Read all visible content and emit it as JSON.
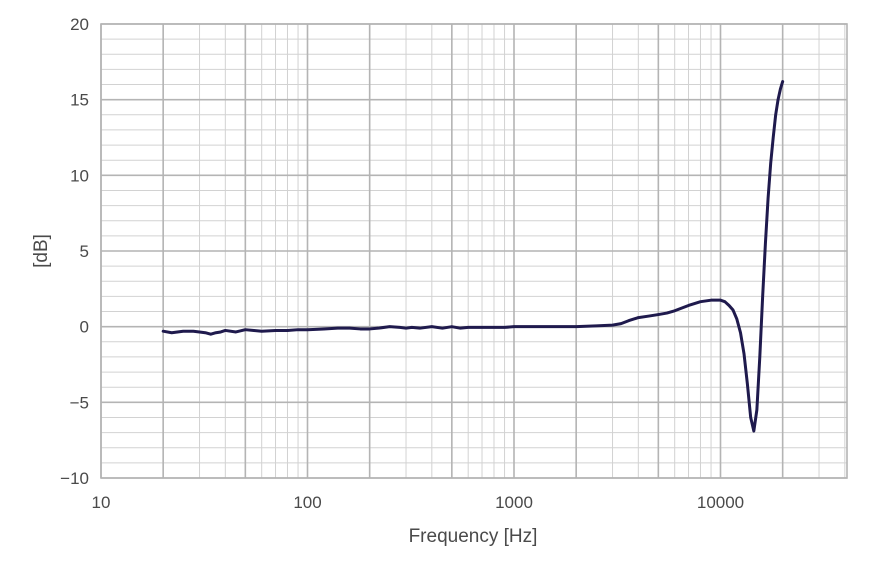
{
  "chart_data": {
    "type": "line",
    "title": "",
    "xlabel": "Frequency [Hz]",
    "ylabel": "[dB]",
    "x_scale": "log",
    "xlim": [
      10,
      40000
    ],
    "ylim": [
      -10,
      20
    ],
    "x_ticks": [
      {
        "value": 10,
        "label": "10"
      },
      {
        "value": 100,
        "label": "100"
      },
      {
        "value": 1000,
        "label": "1000"
      },
      {
        "value": 10000,
        "label": "10000"
      }
    ],
    "y_ticks": [
      {
        "value": 20,
        "label": "20"
      },
      {
        "value": 15,
        "label": "15"
      },
      {
        "value": 10,
        "label": "10"
      },
      {
        "value": 5,
        "label": "5"
      },
      {
        "value": 0,
        "label": "0"
      },
      {
        "value": -5,
        "label": "−5"
      },
      {
        "value": -10,
        "label": "−10"
      }
    ],
    "grid": true,
    "colors": {
      "line": "#1f1a4d",
      "major_grid": "#b4b4b4",
      "minor_grid": "#d2d2d2",
      "text": "#4a4a4a"
    },
    "series": [
      {
        "x": [
          20,
          22,
          25,
          28,
          30,
          32,
          34,
          36,
          38,
          40,
          45,
          50,
          55,
          60,
          70,
          80,
          90,
          100,
          120,
          140,
          160,
          180,
          200,
          220,
          250,
          280,
          300,
          320,
          350,
          400,
          450,
          500,
          550,
          600,
          700,
          800,
          900,
          1000,
          1200,
          1500,
          2000,
          2500,
          3000,
          3300,
          3600,
          4000,
          4500,
          5000,
          5500,
          6000,
          7000,
          8000,
          9000,
          10000,
          10500,
          11000,
          11500,
          12000,
          12500,
          13000,
          13500,
          14000,
          14500,
          15000,
          15500,
          16000,
          16500,
          17000,
          17500,
          18000,
          18500,
          19000,
          19500,
          20000
        ],
        "y": [
          -0.3,
          -0.4,
          -0.3,
          -0.3,
          -0.35,
          -0.4,
          -0.5,
          -0.4,
          -0.35,
          -0.25,
          -0.35,
          -0.2,
          -0.25,
          -0.3,
          -0.25,
          -0.25,
          -0.2,
          -0.2,
          -0.15,
          -0.1,
          -0.1,
          -0.15,
          -0.15,
          -0.1,
          0.0,
          -0.05,
          -0.1,
          -0.05,
          -0.1,
          0.0,
          -0.1,
          0.0,
          -0.1,
          -0.05,
          -0.05,
          -0.05,
          -0.05,
          0.0,
          0.0,
          0.0,
          0.0,
          0.05,
          0.1,
          0.2,
          0.4,
          0.6,
          0.7,
          0.8,
          0.9,
          1.05,
          1.4,
          1.65,
          1.75,
          1.75,
          1.65,
          1.4,
          1.1,
          0.5,
          -0.4,
          -1.8,
          -3.8,
          -6.0,
          -6.9,
          -5.5,
          -2.0,
          2.0,
          5.5,
          8.5,
          10.8,
          12.5,
          14.0,
          15.0,
          15.7,
          16.2
        ]
      }
    ]
  }
}
